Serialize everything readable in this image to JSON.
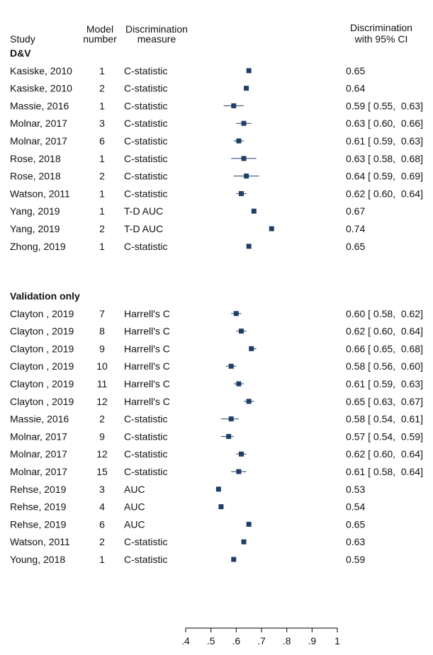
{
  "colors": {
    "marker": "#1f3f66",
    "ci_line": "#1f3f66",
    "text": "#111111",
    "axis": "#000000"
  },
  "chart_data": {
    "type": "forest",
    "headers": {
      "study": "Study",
      "model_number": [
        "Model",
        "number"
      ],
      "measure": [
        "Discrimination",
        "measure"
      ],
      "estimate": [
        "Discrimination",
        "with 95% CI"
      ]
    },
    "x_axis": {
      "range": [
        0.4,
        1.0
      ],
      "ticks": [
        0.4,
        0.5,
        0.6,
        0.7,
        0.8,
        0.9,
        1.0
      ],
      "tick_labels": [
        ".4",
        ".5",
        ".6",
        ".7",
        ".8",
        ".9",
        "1"
      ]
    },
    "groups": [
      {
        "name": "D&V",
        "rows": [
          {
            "study": "Kasiske, 2010",
            "model": "1",
            "measure": "C-statistic",
            "est": 0.65,
            "lo": null,
            "hi": null,
            "label": "0.65"
          },
          {
            "study": "Kasiske, 2010",
            "model": "2",
            "measure": "C-statistic",
            "est": 0.64,
            "lo": null,
            "hi": null,
            "label": "0.64"
          },
          {
            "study": "Massie, 2016",
            "model": "1",
            "measure": "C-statistic",
            "est": 0.59,
            "lo": 0.55,
            "hi": 0.63,
            "label": "0.59 [ 0.55,  0.63]"
          },
          {
            "study": "Molnar, 2017",
            "model": "3",
            "measure": "C-statistic",
            "est": 0.63,
            "lo": 0.6,
            "hi": 0.66,
            "label": "0.63 [ 0.60,  0.66]"
          },
          {
            "study": "Molnar, 2017",
            "model": "6",
            "measure": "C-statistic",
            "est": 0.61,
            "lo": 0.59,
            "hi": 0.63,
            "label": "0.61 [ 0.59,  0.63]"
          },
          {
            "study": "Rose, 2018",
            "model": "1",
            "measure": "C-statistic",
            "est": 0.63,
            "lo": 0.58,
            "hi": 0.68,
            "label": "0.63 [ 0.58,  0.68]"
          },
          {
            "study": "Rose, 2018",
            "model": "2",
            "measure": "C-statistic",
            "est": 0.64,
            "lo": 0.59,
            "hi": 0.69,
            "label": "0.64 [ 0.59,  0.69]"
          },
          {
            "study": "Watson, 2011",
            "model": "1",
            "measure": "C-statistic",
            "est": 0.62,
            "lo": 0.6,
            "hi": 0.64,
            "label": "0.62 [ 0.60,  0.64]"
          },
          {
            "study": "Yang, 2019",
            "model": "1",
            "measure": "T-D AUC",
            "est": 0.67,
            "lo": null,
            "hi": null,
            "label": "0.67"
          },
          {
            "study": "Yang, 2019",
            "model": "2",
            "measure": "T-D AUC",
            "est": 0.74,
            "lo": null,
            "hi": null,
            "label": "0.74"
          },
          {
            "study": "Zhong, 2019",
            "model": "1",
            "measure": "C-statistic",
            "est": 0.65,
            "lo": null,
            "hi": null,
            "label": "0.65"
          }
        ]
      },
      {
        "name": "Validation only",
        "rows": [
          {
            "study": "Clayton , 2019",
            "model": "7",
            "measure": "Harrell's C",
            "est": 0.6,
            "lo": 0.58,
            "hi": 0.62,
            "label": "0.60 [ 0.58,  0.62]"
          },
          {
            "study": "Clayton , 2019",
            "model": "8",
            "measure": "Harrell's C",
            "est": 0.62,
            "lo": 0.6,
            "hi": 0.64,
            "label": "0.62 [ 0.60,  0.64]"
          },
          {
            "study": "Clayton , 2019",
            "model": "9",
            "measure": "Harrell's C",
            "est": 0.66,
            "lo": 0.65,
            "hi": 0.68,
            "label": "0.66 [ 0.65,  0.68]"
          },
          {
            "study": "Clayton , 2019",
            "model": "10",
            "measure": "Harrell's C",
            "est": 0.58,
            "lo": 0.56,
            "hi": 0.6,
            "label": "0.58 [ 0.56,  0.60]"
          },
          {
            "study": "Clayton , 2019",
            "model": "11",
            "measure": "Harrell's C",
            "est": 0.61,
            "lo": 0.59,
            "hi": 0.63,
            "label": "0.61 [ 0.59,  0.63]"
          },
          {
            "study": "Clayton , 2019",
            "model": "12",
            "measure": "Harrell's C",
            "est": 0.65,
            "lo": 0.63,
            "hi": 0.67,
            "label": "0.65 [ 0.63,  0.67]"
          },
          {
            "study": "Massie, 2016",
            "model": "2",
            "measure": "C-statistic",
            "est": 0.58,
            "lo": 0.54,
            "hi": 0.61,
            "label": "0.58 [ 0.54,  0.61]"
          },
          {
            "study": "Molnar, 2017",
            "model": "9",
            "measure": "C-statistic",
            "est": 0.57,
            "lo": 0.54,
            "hi": 0.59,
            "label": "0.57 [ 0.54,  0.59]"
          },
          {
            "study": "Molnar, 2017",
            "model": "12",
            "measure": "C-statistic",
            "est": 0.62,
            "lo": 0.6,
            "hi": 0.64,
            "label": "0.62 [ 0.60,  0.64]"
          },
          {
            "study": "Molnar, 2017",
            "model": "15",
            "measure": "C-statistic",
            "est": 0.61,
            "lo": 0.58,
            "hi": 0.64,
            "label": "0.61 [ 0.58,  0.64]"
          },
          {
            "study": "Rehse, 2019",
            "model": "3",
            "measure": "AUC",
            "est": 0.53,
            "lo": null,
            "hi": null,
            "label": "0.53"
          },
          {
            "study": "Rehse, 2019",
            "model": "4",
            "measure": "AUC",
            "est": 0.54,
            "lo": null,
            "hi": null,
            "label": "0.54"
          },
          {
            "study": "Rehse, 2019",
            "model": "6",
            "measure": "AUC",
            "est": 0.65,
            "lo": null,
            "hi": null,
            "label": "0.65"
          },
          {
            "study": "Watson, 2011",
            "model": "2",
            "measure": "C-statistic",
            "est": 0.63,
            "lo": null,
            "hi": null,
            "label": "0.63"
          },
          {
            "study": "Young, 2018",
            "model": "1",
            "measure": "C-statistic",
            "est": 0.59,
            "lo": null,
            "hi": null,
            "label": "0.59"
          }
        ]
      }
    ]
  }
}
